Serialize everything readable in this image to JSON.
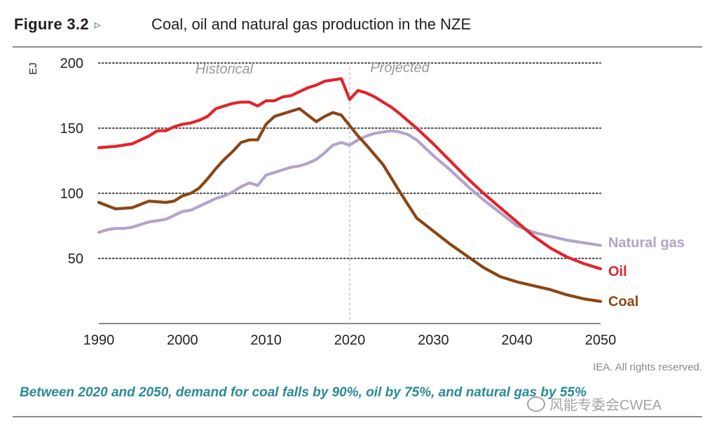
{
  "figure": {
    "number": "Figure 3.2",
    "arrow": "▹",
    "title": "Coal, oil and natural gas production in the NZE"
  },
  "credit": "IEA. All rights reserved.",
  "caption": "Between 2020 and 2050, demand for coal falls by 90%, oil by 75%, and natural gas by 55%",
  "watermark": "风能专委会CWEA",
  "colors": {
    "oil": "#e3232b",
    "coal": "#8b4513",
    "gas": "#b3a3c9",
    "grid": "#555555",
    "divider": "#bbbbbb",
    "annotation": "#9a9a9a"
  },
  "chart_data": {
    "type": "line",
    "title": "Coal, oil and natural gas production in the NZE",
    "ylabel": "EJ",
    "xlabel": "",
    "xlim": [
      1990,
      2050
    ],
    "ylim": [
      0,
      200
    ],
    "yticks": [
      50,
      100,
      150,
      200
    ],
    "xticks": [
      1990,
      2000,
      2010,
      2020,
      2030,
      2040,
      2050
    ],
    "grid": "horizontal dotted",
    "annotations": [
      {
        "text": "Historical",
        "x": 2005,
        "y": 192
      },
      {
        "text": "Projected",
        "x": 2026,
        "y": 193
      }
    ],
    "divider_x": 2020,
    "series": [
      {
        "name": "Oil",
        "key": "oil",
        "x": [
          1990,
          1992,
          1994,
          1996,
          1997,
          1998,
          1999,
          2000,
          2001,
          2002,
          2003,
          2004,
          2005,
          2006,
          2007,
          2008,
          2009,
          2010,
          2011,
          2012,
          2013,
          2014,
          2015,
          2016,
          2017,
          2018,
          2019,
          2020,
          2021,
          2022,
          2023,
          2024,
          2025,
          2026,
          2028,
          2030,
          2032,
          2034,
          2036,
          2038,
          2040,
          2042,
          2044,
          2046,
          2048,
          2050
        ],
        "y": [
          135,
          136,
          138,
          144,
          148,
          148,
          151,
          153,
          154,
          156,
          159,
          165,
          167,
          169,
          170,
          170,
          167,
          171,
          171,
          174,
          175,
          178,
          181,
          183,
          186,
          187,
          188,
          172,
          179,
          177,
          174,
          170,
          166,
          161,
          150,
          138,
          125,
          112,
          100,
          89,
          78,
          67,
          58,
          51,
          46,
          42
        ]
      },
      {
        "name": "Coal",
        "key": "coal",
        "x": [
          1990,
          1992,
          1994,
          1996,
          1998,
          1999,
          2000,
          2001,
          2002,
          2003,
          2004,
          2005,
          2006,
          2007,
          2008,
          2009,
          2010,
          2011,
          2012,
          2013,
          2014,
          2015,
          2016,
          2017,
          2018,
          2019,
          2020,
          2021,
          2022,
          2024,
          2026,
          2028,
          2030,
          2032,
          2034,
          2036,
          2038,
          2040,
          2042,
          2044,
          2046,
          2048,
          2050
        ],
        "y": [
          93,
          88,
          89,
          94,
          93,
          94,
          98,
          100,
          104,
          111,
          119,
          126,
          132,
          139,
          141,
          141,
          153,
          159,
          161,
          163,
          165,
          160,
          155,
          159,
          162,
          160,
          152,
          144,
          137,
          122,
          101,
          81,
          71,
          61,
          52,
          43,
          36,
          32,
          29,
          26,
          22,
          19,
          17
        ]
      },
      {
        "name": "Natural gas",
        "key": "gas",
        "x": [
          1990,
          1991,
          1992,
          1993,
          1994,
          1995,
          1996,
          1997,
          1998,
          1999,
          2000,
          2001,
          2002,
          2003,
          2004,
          2005,
          2006,
          2007,
          2008,
          2009,
          2010,
          2011,
          2012,
          2013,
          2014,
          2015,
          2016,
          2017,
          2018,
          2019,
          2020,
          2021,
          2022,
          2023,
          2024,
          2025,
          2026,
          2027,
          2028,
          2030,
          2032,
          2034,
          2036,
          2038,
          2040,
          2042,
          2044,
          2046,
          2048,
          2050
        ],
        "y": [
          70,
          72,
          73,
          73,
          74,
          76,
          78,
          79,
          80,
          83,
          86,
          87,
          90,
          93,
          96,
          98,
          101,
          105,
          108,
          106,
          114,
          116,
          118,
          120,
          121,
          123,
          126,
          131,
          137,
          139,
          137,
          141,
          144,
          146,
          147,
          148,
          147,
          145,
          141,
          129,
          118,
          106,
          95,
          85,
          75,
          70,
          67,
          64,
          62,
          60
        ]
      }
    ]
  }
}
